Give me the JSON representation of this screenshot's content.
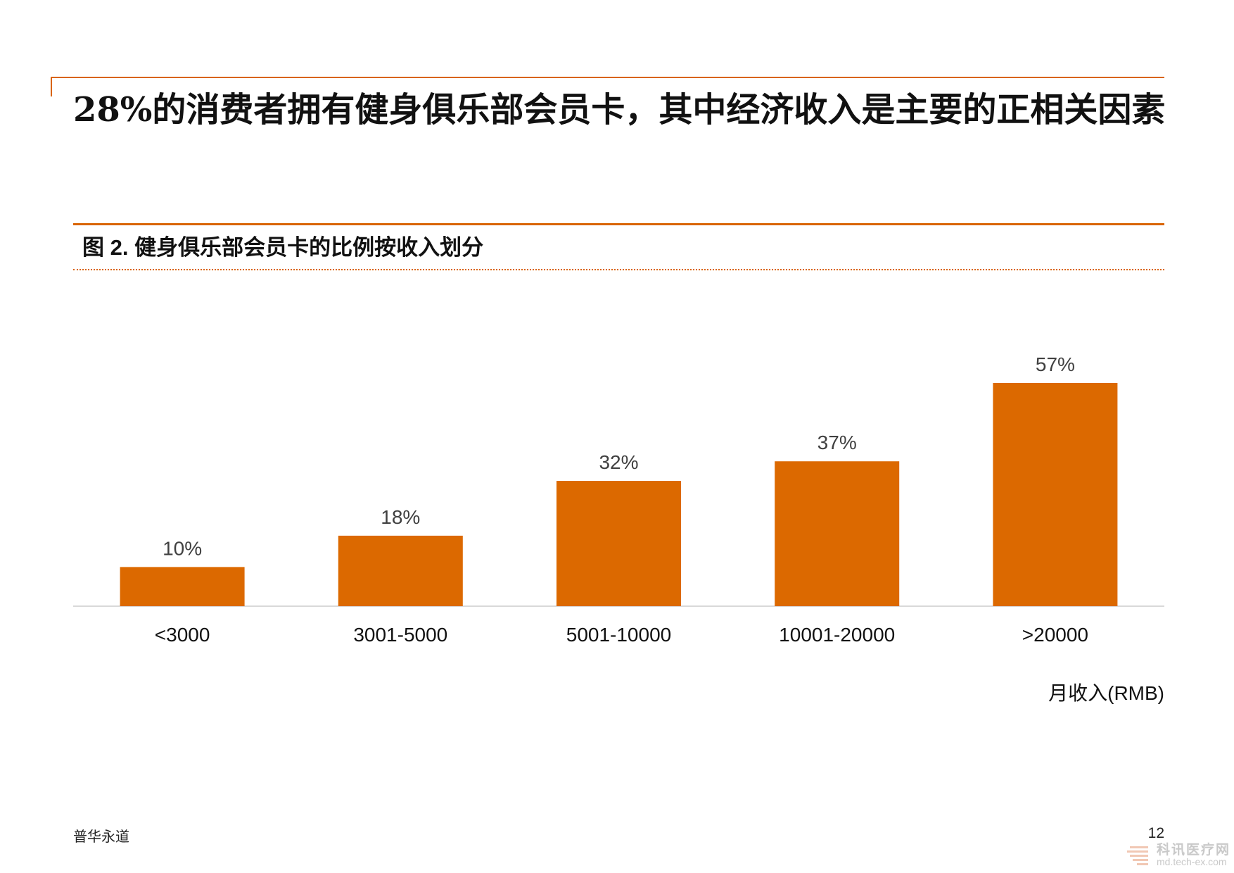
{
  "headline": "28%的消费者拥有健身俱乐部会员卡，其中经济收入是主要的正相关因素",
  "figure_title": "图 2. 健身俱乐部会员卡的比例按收入划分",
  "unit_label": "月收入(RMB)",
  "footer": {
    "company": "普华永道",
    "page": "12"
  },
  "watermark": {
    "text": "科讯医疗网",
    "url": "md.tech-ex.com"
  },
  "colors": {
    "accent": "#d96400",
    "bar": "#dc6900",
    "text": "#1a1a1a",
    "value_label": "#404040"
  },
  "chart_data": {
    "type": "bar",
    "categories": [
      "<3000",
      "3001-5000",
      "5001-10000",
      "10001-20000",
      ">20000"
    ],
    "values": [
      10,
      18,
      32,
      37,
      57
    ],
    "value_labels": [
      "10%",
      "18%",
      "32%",
      "37%",
      "57%"
    ],
    "title": "图 2. 健身俱乐部会员卡的比例按收入划分",
    "xlabel": "月收入(RMB)",
    "ylabel": "",
    "ylim": [
      0,
      57
    ],
    "grid": false,
    "legend": "none"
  }
}
